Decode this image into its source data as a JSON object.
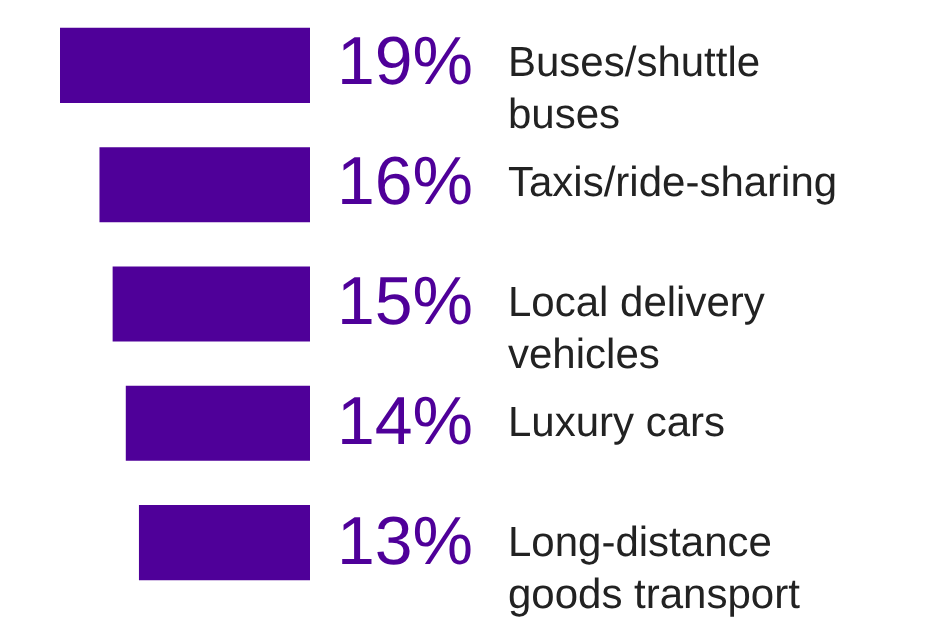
{
  "chart_data": {
    "type": "bar",
    "orientation": "horizontal",
    "categories": [
      "Buses/shuttle buses",
      "Taxis/ride-sharing",
      "Local delivery vehicles",
      "Luxury cars",
      "Long-distance goods transport"
    ],
    "values": [
      19,
      16,
      15,
      14,
      13
    ],
    "value_labels": [
      "19%",
      "16%",
      "15%",
      "14%",
      "13%"
    ],
    "color": "#4f0099"
  }
}
